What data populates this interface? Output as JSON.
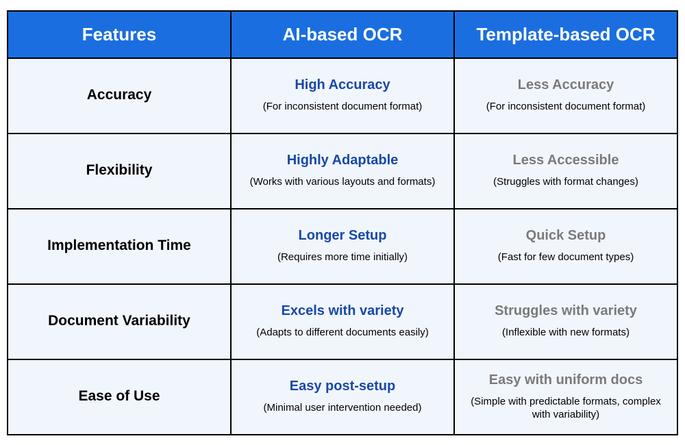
{
  "header": {
    "col1": "Features",
    "col2": "AI-based OCR",
    "col3": "Template-based OCR"
  },
  "rows": [
    {
      "feature": "Accuracy",
      "ai_main": "High Accuracy",
      "ai_sub": "(For inconsistent document format)",
      "template_main": "Less Accuracy",
      "template_sub": "(For inconsistent document format)"
    },
    {
      "feature": "Flexibility",
      "ai_main": "Highly Adaptable",
      "ai_sub": "(Works with various layouts and formats)",
      "template_main": "Less Accessible",
      "template_sub": "(Struggles with format changes)"
    },
    {
      "feature": "Implementation Time",
      "ai_main": "Longer Setup",
      "ai_sub": "(Requires more time initially)",
      "template_main": "Quick Setup",
      "template_sub": "(Fast for few document types)"
    },
    {
      "feature": "Document Variability",
      "ai_main": "Excels with variety",
      "ai_sub": "(Adapts to different documents easily)",
      "template_main": "Struggles with variety",
      "template_sub": "(Inflexible with new formats)"
    },
    {
      "feature": "Ease of Use",
      "ai_main": "Easy post-setup",
      "ai_sub": "(Minimal user intervention needed)",
      "template_main": "Easy with uniform docs",
      "template_sub": "(Simple with predictable formats, complex with variability)"
    }
  ],
  "colors": {
    "header_bg": "#1a6ee0",
    "header_text": "#ffffff",
    "row_bg": "#f1f5fc",
    "border": "#000000",
    "ai_color": "#1848a6",
    "template_color": "#7a7a7a",
    "feature_color": "#000000"
  },
  "typography": {
    "header_fontsize": 26,
    "feature_fontsize": 21,
    "main_fontsize": 20,
    "sub_fontsize": 15
  }
}
